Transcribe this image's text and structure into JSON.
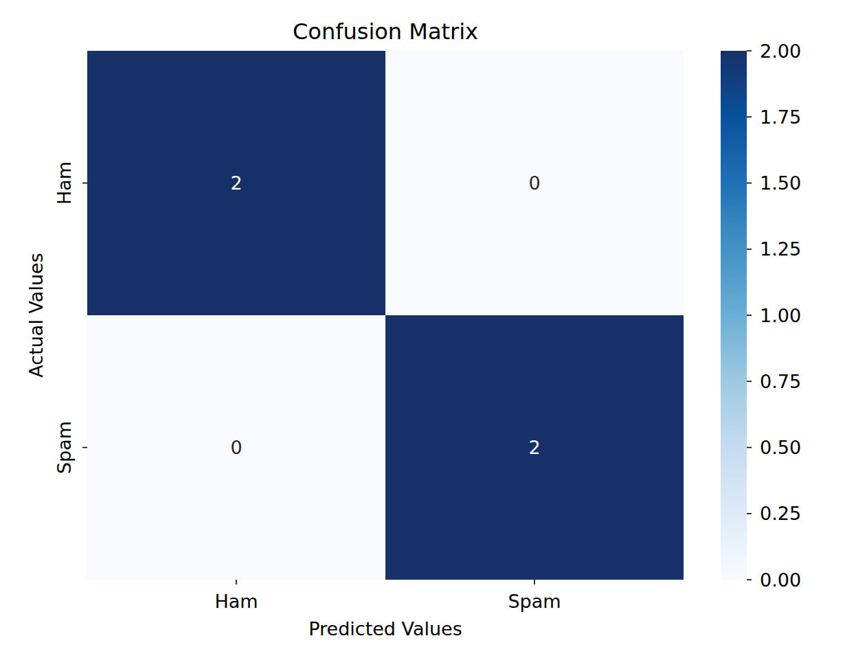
{
  "chart_data": {
    "type": "heatmap",
    "title": "Confusion Matrix",
    "xlabel": "Predicted Values",
    "ylabel": "Actual Values",
    "x_categories": [
      "Ham",
      "Spam"
    ],
    "y_categories": [
      "Ham",
      "Spam"
    ],
    "cells": [
      [
        2,
        0
      ],
      [
        0,
        2
      ]
    ],
    "data_labels": true,
    "colorbar": {
      "range": [
        0,
        2
      ],
      "ticks": [
        {
          "value": 0,
          "label": "0.00"
        },
        {
          "value": 0.25,
          "label": "0.25"
        },
        {
          "value": 0.5,
          "label": "0.50"
        },
        {
          "value": 0.75,
          "label": "0.75"
        },
        {
          "value": 1,
          "label": "1.00"
        },
        {
          "value": 1.25,
          "label": "1.25"
        },
        {
          "value": 1.5,
          "label": "1.50"
        },
        {
          "value": 1.75,
          "label": "1.75"
        },
        {
          "value": 2,
          "label": "2.00"
        }
      ]
    }
  }
}
